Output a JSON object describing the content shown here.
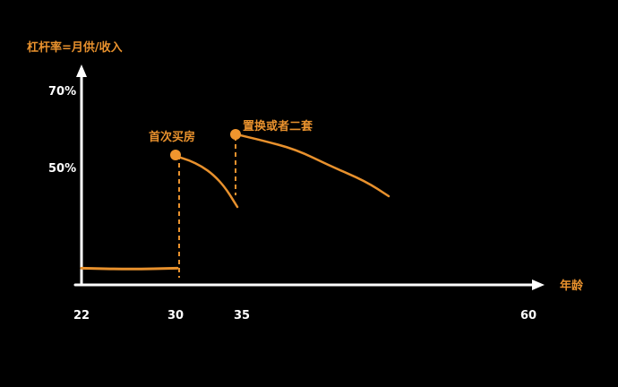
{
  "chart_data": {
    "type": "line",
    "ylabel": "杠杆率=月供/收入",
    "xlabel": "年龄",
    "x_ticks": [
      "22",
      "30",
      "35",
      "60"
    ],
    "y_ticks": [
      "70%",
      "50%"
    ],
    "x_tick_values": [
      22,
      30,
      35,
      60
    ],
    "y_tick_values": [
      70,
      50
    ],
    "xlim": [
      22,
      60
    ],
    "ylim": [
      0,
      72
    ],
    "series": [
      {
        "points": [
          [
            22,
            1.5
          ],
          [
            26,
            1.0
          ],
          [
            30,
            1.5
          ]
        ]
      },
      {
        "points": [
          [
            30,
            52
          ],
          [
            31,
            51
          ],
          [
            32,
            49
          ],
          [
            33,
            45
          ],
          [
            34,
            39
          ],
          [
            35,
            30
          ]
        ]
      },
      {
        "points": [
          [
            35,
            58
          ],
          [
            37,
            56.5
          ],
          [
            40,
            54
          ],
          [
            43,
            49
          ],
          [
            46,
            42
          ],
          [
            48,
            35
          ]
        ]
      }
    ],
    "markers": [
      {
        "x": 30,
        "y": 52,
        "label": "首次买房"
      },
      {
        "x": 35,
        "y": 58,
        "label": "置换或者二套"
      }
    ],
    "grid": false,
    "colors": {
      "background": "#000000",
      "axis": "#FFFFFF",
      "line": "#E8912D",
      "text_accent": "#E8912D",
      "text_plain": "#FFFFFF"
    }
  }
}
